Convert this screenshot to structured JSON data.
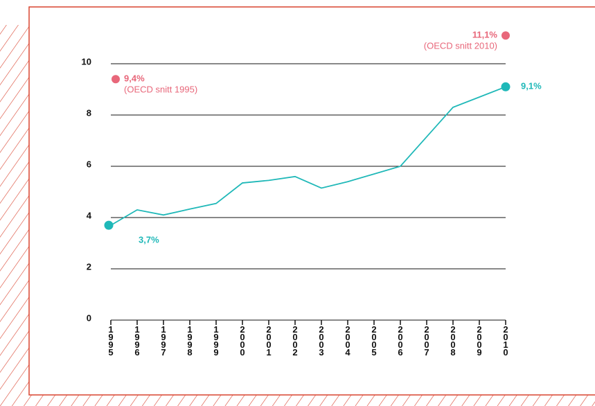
{
  "chart_data": {
    "type": "line",
    "categories": [
      "1995",
      "1996",
      "1997",
      "1998",
      "1999",
      "2000",
      "2001",
      "2002",
      "2003",
      "2004",
      "2005",
      "2006",
      "2007",
      "2008",
      "2009",
      "2010"
    ],
    "series": [
      {
        "color": "#1fb8b8",
        "values": [
          3.7,
          4.3,
          4.1,
          4.33,
          4.55,
          5.35,
          5.45,
          5.6,
          5.15,
          5.4,
          5.7,
          6.0,
          7.15,
          8.3,
          8.7,
          9.1
        ],
        "value_labels": [
          "3,7%",
          null,
          null,
          null,
          null,
          null,
          null,
          null,
          null,
          null,
          null,
          null,
          null,
          null,
          null,
          "9,1%"
        ]
      }
    ],
    "ylim": [
      0,
      10
    ],
    "yticks": [
      0,
      2,
      4,
      6,
      8,
      10
    ],
    "grid": true,
    "annotations": [
      {
        "x": "1995",
        "value": 9.4,
        "label": "9,4%",
        "text": "(OECD snitt 1995)",
        "color": "#e8677a"
      },
      {
        "x": "2010",
        "value": 11.1,
        "label": "11,1%",
        "text": "(OECD snitt 2010)",
        "color": "#e8677a"
      }
    ]
  }
}
